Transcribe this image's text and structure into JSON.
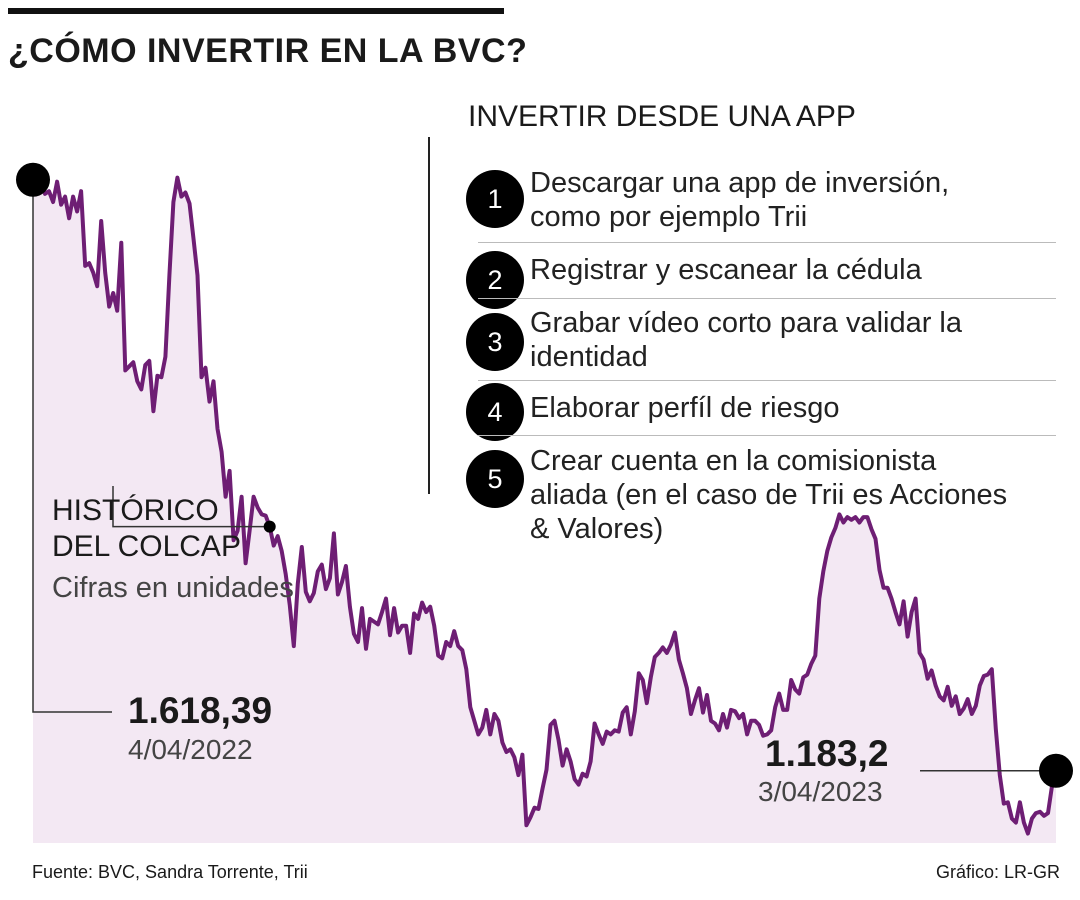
{
  "title": "¿CÓMO INVERTIR EN LA BVC?",
  "chart_label_1": "HISTÓRICO",
  "chart_label_2": "DEL COLCAP",
  "chart_subtitle": "Cifras en unidades",
  "start": {
    "value": "1.618,39",
    "date": "4/04/2022"
  },
  "end": {
    "value": "1.183,2",
    "date": "3/04/2023"
  },
  "app_section": {
    "title": "INVERTIR DESDE UNA APP",
    "steps": [
      {
        "num": "1",
        "line1": "Descargar una app de inversión,",
        "line2": "como por ejemplo Trii",
        "line3": ""
      },
      {
        "num": "2",
        "line1": "Registrar y escanear la cédula",
        "line2": "",
        "line3": ""
      },
      {
        "num": "3",
        "line1": "Grabar vídeo corto para validar la",
        "line2": "identidad",
        "line3": ""
      },
      {
        "num": "4",
        "line1": "Elaborar perfíl de riesgo",
        "line2": "",
        "line3": ""
      },
      {
        "num": "5",
        "line1": "Crear cuenta en la comisionista",
        "line2": "aliada (en el caso de Trii es Acciones",
        "line3": "& Valores)"
      }
    ]
  },
  "footer": {
    "source": "Fuente: BVC, Sandra Torrente, Trii",
    "credit": "Gráfico: LR-GR"
  },
  "colors": {
    "line": "#6e1e74",
    "fill": "#f3e8f3",
    "marker": "#000000",
    "connector": "#333333"
  },
  "chart_data": {
    "type": "area",
    "title": "HISTÓRICO DEL COLCAP",
    "subtitle": "Cifras en unidades",
    "x_start": "4/04/2022",
    "x_end": "3/04/2023",
    "series": [
      {
        "name": "",
        "values": [
          1618.39,
          1615,
          1620,
          1608,
          1610,
          1602,
          1617,
          1600,
          1606,
          1590,
          1606,
          1595,
          1610,
          1555,
          1557,
          1550,
          1540,
          1588,
          1550,
          1525,
          1535,
          1522,
          1572,
          1478,
          1481,
          1484,
          1470,
          1464,
          1482,
          1485,
          1448,
          1474,
          1473,
          1488,
          1548,
          1602,
          1620,
          1606,
          1609,
          1601,
          1575,
          1548,
          1473,
          1480,
          1455,
          1470,
          1435,
          1418,
          1385,
          1404,
          1353,
          1360,
          1385,
          1336,
          1360,
          1385,
          1377,
          1372,
          1371,
          1363,
          1349,
          1356,
          1345,
          1328,
          1305,
          1275,
          1321,
          1348,
          1315,
          1308,
          1314,
          1330,
          1335,
          1317,
          1325,
          1358,
          1313,
          1322,
          1334,
          1304,
          1284,
          1278,
          1303,
          1273,
          1295,
          1293,
          1291,
          1300,
          1310,
          1283,
          1303,
          1285,
          1290,
          1290,
          1270,
          1299,
          1295,
          1307,
          1300,
          1304,
          1290,
          1268,
          1266,
          1278,
          1275,
          1286,
          1275,
          1272,
          1258,
          1230,
          1220,
          1210,
          1215,
          1228,
          1210,
          1225,
          1220,
          1204,
          1197,
          1199,
          1193,
          1180,
          1195,
          1143,
          1149,
          1156,
          1155,
          1170,
          1184,
          1217,
          1220,
          1206,
          1187,
          1199,
          1190,
          1177,
          1173,
          1181,
          1179,
          1190,
          1218,
          1210,
          1203,
          1212,
          1210,
          1213,
          1212,
          1226,
          1230,
          1210,
          1227,
          1255,
          1250,
          1233,
          1252,
          1267,
          1270,
          1274,
          1270,
          1276,
          1285,
          1265,
          1255,
          1244,
          1225,
          1235,
          1244,
          1226,
          1239,
          1220,
          1218,
          1213,
          1225,
          1215,
          1228,
          1227,
          1222,
          1225,
          1210,
          1220,
          1220,
          1217,
          1209,
          1210,
          1213,
          1230,
          1240,
          1228,
          1228,
          1250,
          1243,
          1240,
          1252,
          1254,
          1262,
          1268,
          1310,
          1330,
          1345,
          1355,
          1362,
          1372,
          1366,
          1370,
          1368,
          1370,
          1366,
          1370,
          1370,
          1361,
          1354,
          1331,
          1318,
          1318,
          1310,
          1300,
          1291,
          1308,
          1282,
          1300,
          1310,
          1270,
          1265,
          1251,
          1257,
          1246,
          1238,
          1235,
          1245,
          1231,
          1238,
          1225,
          1229,
          1236,
          1225,
          1231,
          1246,
          1253,
          1254,
          1258,
          1214,
          1180,
          1159,
          1160,
          1148,
          1145,
          1160,
          1145,
          1137,
          1148,
          1152,
          1153,
          1150,
          1152,
          1172,
          1183.2
        ]
      }
    ],
    "ylim": [
      1130,
      1630
    ],
    "grid": false
  }
}
